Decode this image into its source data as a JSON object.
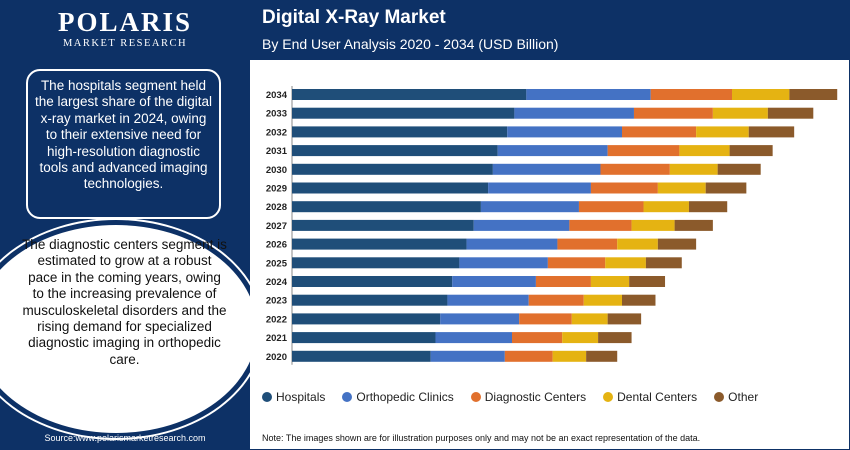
{
  "logo": {
    "name": "POLARIS",
    "tagline": "MARKET RESEARCH"
  },
  "left_panel": {
    "box1_text": "The hospitals segment held the largest share of the digital x-ray market in 2024, owing to their extensive need for high-resolution diagnostic tools and advanced imaging technologies.",
    "box2_text": "The diagnostic centers segment is estimated to grow at a robust pace in the coming years, owing to the increasing prevalence of musculoskeletal disorders and the rising demand for specialized diagnostic imaging in orthopedic care.",
    "source": "Source:www.polarismarketresearch.com"
  },
  "header": {
    "title": "Digital X-Ray Market",
    "subtitle": "By End User Analysis 2020 - 2034 (USD Billion)"
  },
  "note": "Note: The images shown are for illustration purposes only and may not be an exact representation of the data.",
  "colors": {
    "navy": "#0d3166",
    "hospitals": "#1f4e79",
    "orthopedic": "#4472c4",
    "diagnostic": "#e1702d",
    "dental": "#e5b312",
    "other": "#8b5a2b"
  },
  "chart_data": {
    "type": "bar",
    "orientation": "horizontal",
    "stacked": true,
    "categories": [
      "2034",
      "2033",
      "2032",
      "2031",
      "2030",
      "2029",
      "2028",
      "2027",
      "2026",
      "2025",
      "2024",
      "2023",
      "2022",
      "2021",
      "2020"
    ],
    "series": [
      {
        "name": "Hospitals",
        "color": "#1f4e79",
        "values": [
          9.8,
          9.3,
          9.0,
          8.6,
          8.4,
          8.2,
          7.9,
          7.6,
          7.3,
          7.0,
          6.7,
          6.5,
          6.2,
          6.0,
          5.8
        ]
      },
      {
        "name": "Orthopedic Clinics",
        "color": "#4472c4",
        "values": [
          5.2,
          5.0,
          4.8,
          4.6,
          4.5,
          4.3,
          4.1,
          4.0,
          3.8,
          3.7,
          3.5,
          3.4,
          3.3,
          3.2,
          3.1
        ]
      },
      {
        "name": "Diagnostic Centers",
        "color": "#e1702d",
        "values": [
          3.4,
          3.3,
          3.1,
          3.0,
          2.9,
          2.8,
          2.7,
          2.6,
          2.5,
          2.4,
          2.3,
          2.3,
          2.2,
          2.1,
          2.0
        ]
      },
      {
        "name": "Dental Centers",
        "color": "#e5b312",
        "values": [
          2.4,
          2.3,
          2.2,
          2.1,
          2.0,
          2.0,
          1.9,
          1.8,
          1.7,
          1.7,
          1.6,
          1.6,
          1.5,
          1.5,
          1.4
        ]
      },
      {
        "name": "Other",
        "color": "#8b5a2b",
        "values": [
          2.0,
          1.9,
          1.9,
          1.8,
          1.8,
          1.7,
          1.6,
          1.6,
          1.6,
          1.5,
          1.5,
          1.4,
          1.4,
          1.4,
          1.3
        ]
      }
    ],
    "xlim": [
      0,
      23
    ],
    "grid": false,
    "legend_position": "bottom",
    "legend": [
      "Hospitals",
      "Orthopedic Clinics",
      "Diagnostic Centers",
      "Dental Centers",
      "Other"
    ]
  }
}
